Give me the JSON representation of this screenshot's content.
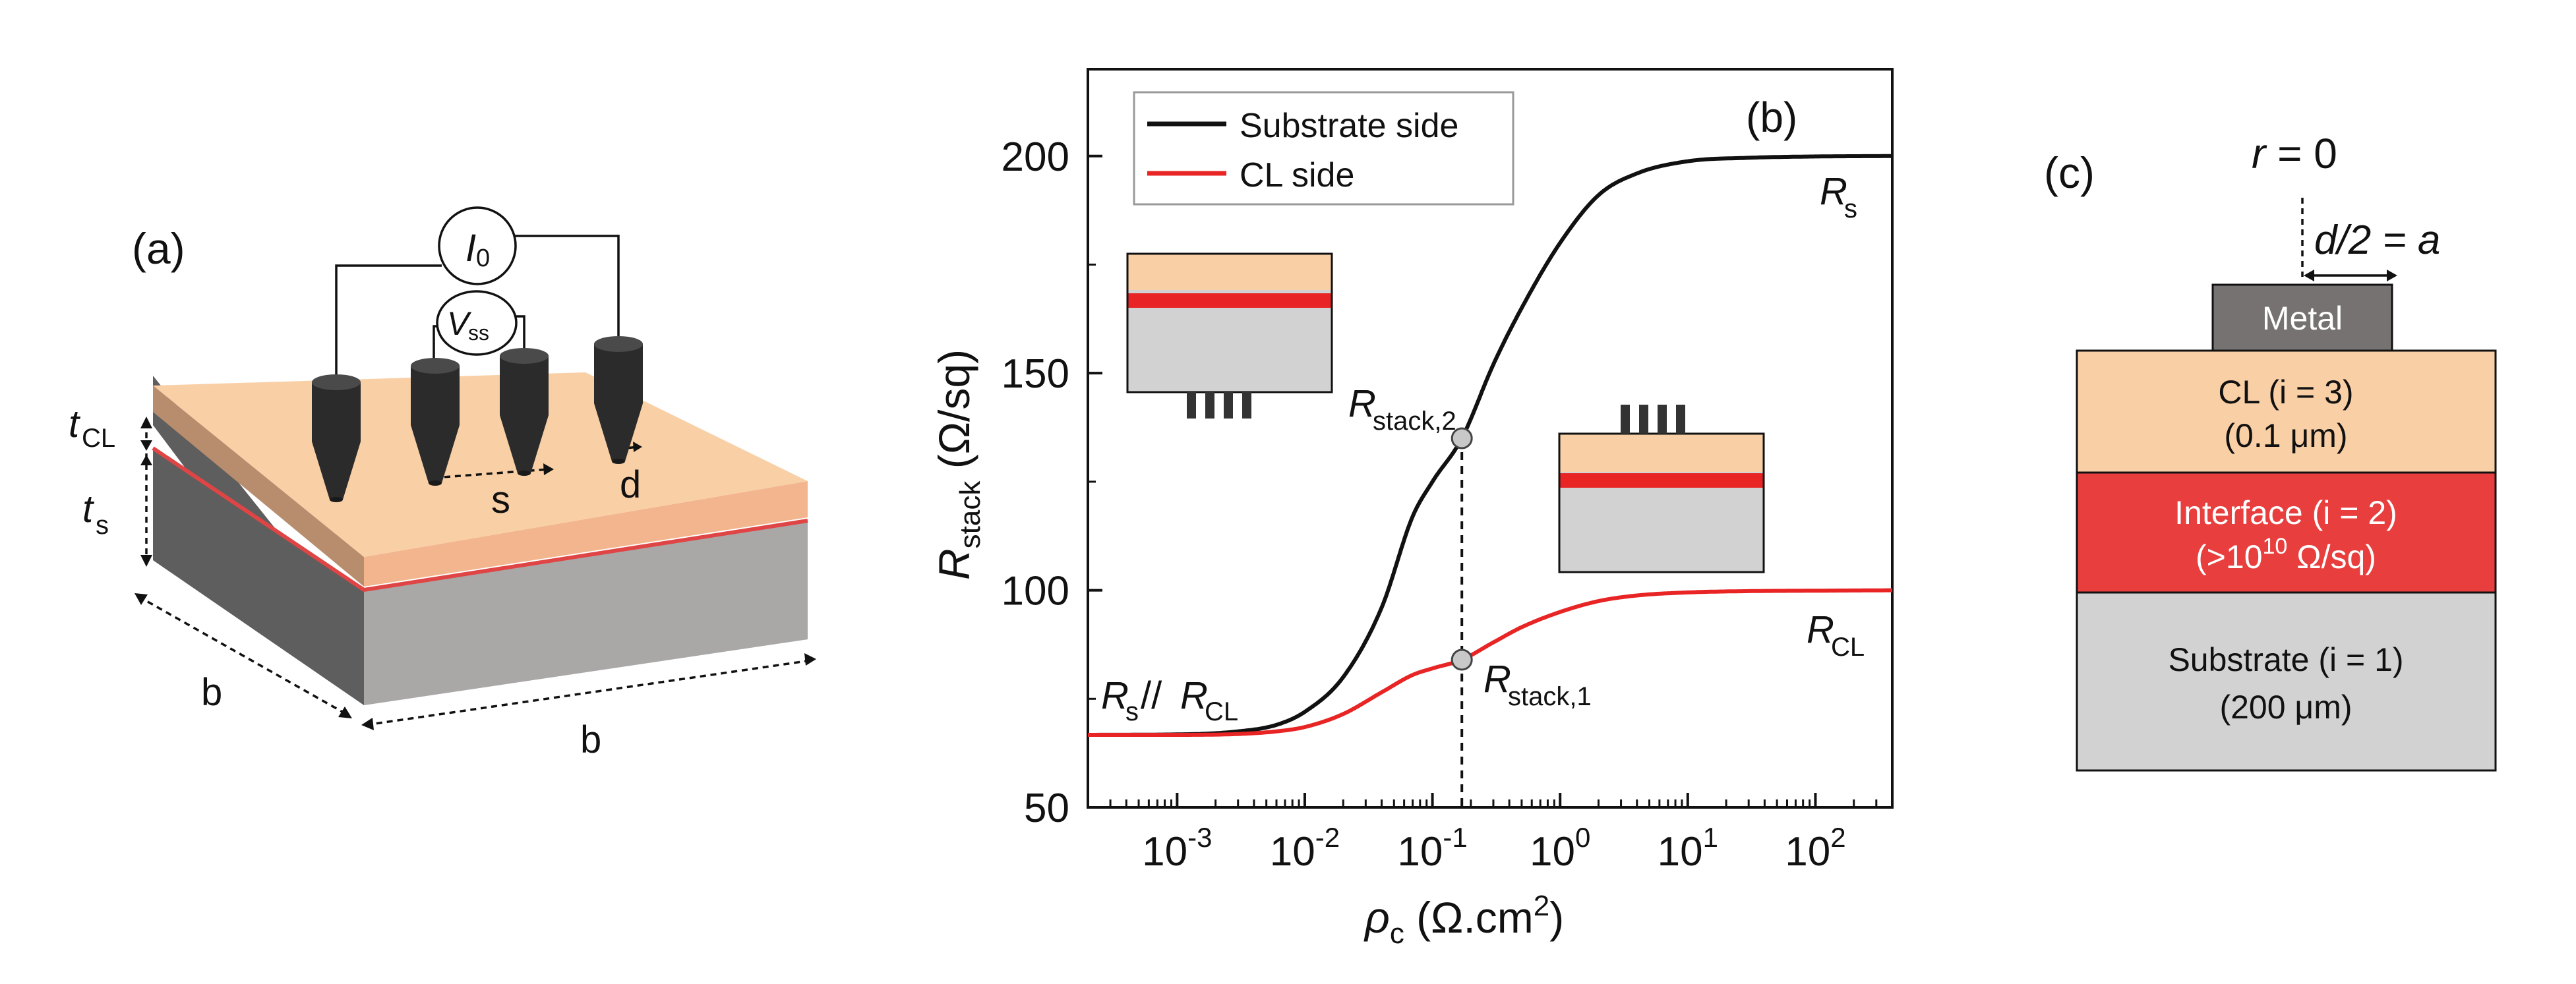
{
  "panel_a": {
    "label": "(a)",
    "current_source": {
      "symbol": "I",
      "sub": "0"
    },
    "voltmeter": {
      "symbol": "V",
      "sub": "ss"
    },
    "spacing_label": "s",
    "diameter_label": "d",
    "width_label_left": "b",
    "width_label_right": "b",
    "t_cl": {
      "symbol": "t",
      "sub": "CL"
    },
    "t_s": {
      "symbol": "t",
      "sub": "s"
    },
    "colors": {
      "top": "#f9cfa6",
      "interface": "#e04545",
      "substrate_front": "#aaa7a7",
      "substrate_side": "#5e5e5e",
      "probe": "#2b2b2b"
    }
  },
  "panel_b": {
    "label": "(b)",
    "legend": [
      {
        "name": "Substrate side",
        "color": "#111111"
      },
      {
        "name": "CL side",
        "color": "#e82424"
      }
    ],
    "annotations": {
      "rs": {
        "symbol": "R",
        "sub": "s"
      },
      "rcl": {
        "symbol": "R",
        "sub": "CL"
      },
      "parallel": {
        "a": "R",
        "a_sub": "s",
        "mid": "//",
        "b": "R",
        "b_sub": "CL"
      },
      "stack2": {
        "symbol": "R",
        "sub": "stack,2"
      },
      "stack1": {
        "symbol": "R",
        "sub": "stack,1"
      }
    }
  },
  "chart_data": {
    "type": "line",
    "x_scale": "log",
    "xlim": [
      0.0002,
      400
    ],
    "ylim": [
      50,
      220
    ],
    "xlabel": {
      "symbol": "ρ",
      "sub": "c",
      "rest": " (Ω.cm",
      "sup": "2",
      "end": ")"
    },
    "ylabel": {
      "symbol": "R",
      "sub": "stack",
      "rest": " (Ω/sq)"
    },
    "y_ticks": [
      50,
      100,
      150,
      200
    ],
    "x_ticks": [
      {
        "value": 0.001,
        "base": "10",
        "exp": "-3"
      },
      {
        "value": 0.01,
        "base": "10",
        "exp": "-2"
      },
      {
        "value": 0.1,
        "base": "10",
        "exp": "-1"
      },
      {
        "value": 1,
        "base": "10",
        "exp": "0"
      },
      {
        "value": 10,
        "base": "10",
        "exp": "1"
      },
      {
        "value": 100,
        "base": "10",
        "exp": "2"
      }
    ],
    "marker_x": 0.17,
    "series": [
      {
        "name": "Substrate side",
        "color": "#111111",
        "x": [
          0.0002,
          0.001,
          0.003,
          0.006,
          0.01,
          0.02,
          0.04,
          0.07,
          0.1,
          0.17,
          0.3,
          0.5,
          1,
          2,
          4,
          10,
          30,
          100,
          400
        ],
        "y": [
          66.7,
          66.8,
          67.5,
          69,
          72,
          80,
          96,
          117,
          125,
          135,
          152,
          165,
          180,
          191,
          196,
          198.8,
          199.6,
          199.9,
          200
        ]
      },
      {
        "name": "CL side",
        "color": "#e82424",
        "x": [
          0.0002,
          0.001,
          0.003,
          0.006,
          0.01,
          0.02,
          0.04,
          0.07,
          0.1,
          0.17,
          0.3,
          0.5,
          1,
          2,
          4,
          10,
          30,
          100,
          400
        ],
        "y": [
          66.7,
          66.7,
          66.9,
          67.5,
          68.5,
          71.5,
          76.5,
          80.5,
          82,
          84,
          88,
          91.5,
          95,
          97.5,
          98.8,
          99.5,
          99.8,
          99.9,
          100
        ]
      }
    ],
    "markers": [
      {
        "x": 0.17,
        "y": 135,
        "series": "Substrate side"
      },
      {
        "x": 0.17,
        "y": 84,
        "series": "CL side"
      }
    ]
  },
  "panel_c": {
    "label": "(c)",
    "r_label": {
      "symbol": "r",
      "rest": " = 0"
    },
    "a_label": "d/2 = a",
    "metal": {
      "label": "Metal",
      "color": "#777272"
    },
    "layers": [
      {
        "line1": "CL (i = 3)",
        "line2": "(0.1 μm)",
        "color": "#f9cfa6",
        "text_color": "#111111"
      },
      {
        "line1": "Interface (i = 2)",
        "line2_pre": "(>10",
        "line2_sup": "10",
        "line2_post": " Ω/sq)",
        "color": "#e83e3e",
        "text_color": "#ffffff"
      },
      {
        "line1": "Substrate (i = 1)",
        "line2": "(200 μm)",
        "color": "#d2d2d2",
        "text_color": "#111111"
      }
    ]
  }
}
